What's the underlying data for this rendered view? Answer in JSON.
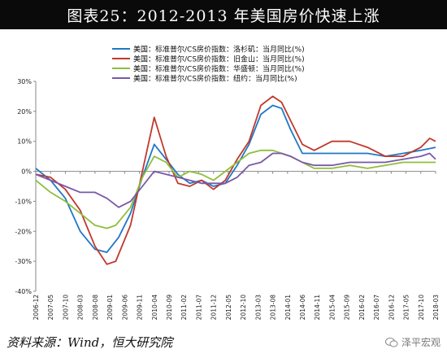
{
  "title": "图表25：2012-2013 年美国房价快速上涨",
  "source": "资料来源：Wind，恒大研究院",
  "watermark": "泽平宏观",
  "chart_data": {
    "type": "line",
    "legend_position": "top-center",
    "grid": false,
    "ylim": [
      -40,
      30
    ],
    "ytick_labels": [
      "30%",
      "20%",
      "10%",
      "0%",
      "-10%",
      "-20%",
      "-30%",
      "-40%"
    ],
    "yticks": [
      30,
      20,
      10,
      0,
      -10,
      -20,
      -30,
      -40
    ],
    "xlim": [
      "2006-12",
      "2018-03"
    ],
    "xtick_labels": [
      "2006-12",
      "2007-05",
      "2007-10",
      "2008-03",
      "2008-08",
      "2009-01",
      "2009-06",
      "2009-11",
      "2010-04",
      "2010-09",
      "2011-02",
      "2011-07",
      "2011-12",
      "2012-05",
      "2012-10",
      "2013-03",
      "2013-08",
      "2014-01",
      "2014-06",
      "2014-11",
      "2015-04",
      "2015-09",
      "2016-02",
      "2016-07",
      "2016-12",
      "2017-05",
      "2017-10",
      "2018-03"
    ],
    "series": [
      {
        "name": "美国：标准普尔/CS房价指数：洛杉矶：当月同比(%)",
        "color": "#1f78c8",
        "points": [
          [
            "2006-12",
            1
          ],
          [
            "2007-05",
            -3
          ],
          [
            "2007-10",
            -9
          ],
          [
            "2008-03",
            -20
          ],
          [
            "2008-08",
            -26
          ],
          [
            "2008-12",
            -27
          ],
          [
            "2009-04",
            -22
          ],
          [
            "2009-08",
            -14
          ],
          [
            "2009-12",
            -2
          ],
          [
            "2010-04",
            9
          ],
          [
            "2010-08",
            4
          ],
          [
            "2010-12",
            -1
          ],
          [
            "2011-04",
            -4
          ],
          [
            "2011-08",
            -3
          ],
          [
            "2011-12",
            -5
          ],
          [
            "2012-04",
            -4
          ],
          [
            "2012-08",
            2
          ],
          [
            "2012-12",
            9
          ],
          [
            "2013-04",
            19
          ],
          [
            "2013-08",
            22
          ],
          [
            "2013-11",
            21
          ],
          [
            "2014-02",
            14
          ],
          [
            "2014-06",
            6
          ],
          [
            "2014-10",
            6
          ],
          [
            "2015-04",
            6
          ],
          [
            "2015-10",
            6
          ],
          [
            "2016-04",
            6
          ],
          [
            "2016-10",
            5
          ],
          [
            "2017-04",
            6
          ],
          [
            "2017-10",
            7
          ],
          [
            "2018-03",
            8
          ]
        ]
      },
      {
        "name": "美国：标准普尔/CS房价指数：旧金山：当月同比(%)",
        "color": "#c0392b",
        "points": [
          [
            "2006-12",
            -1
          ],
          [
            "2007-05",
            -2
          ],
          [
            "2007-10",
            -6
          ],
          [
            "2008-03",
            -13
          ],
          [
            "2008-08",
            -25
          ],
          [
            "2008-12",
            -31
          ],
          [
            "2009-03",
            -30
          ],
          [
            "2009-08",
            -18
          ],
          [
            "2009-12",
            0
          ],
          [
            "2010-04",
            18
          ],
          [
            "2010-08",
            5
          ],
          [
            "2010-12",
            -4
          ],
          [
            "2011-04",
            -5
          ],
          [
            "2011-08",
            -3
          ],
          [
            "2011-12",
            -6
          ],
          [
            "2012-04",
            -3
          ],
          [
            "2012-08",
            4
          ],
          [
            "2012-12",
            10
          ],
          [
            "2013-04",
            22
          ],
          [
            "2013-08",
            25
          ],
          [
            "2013-11",
            23
          ],
          [
            "2014-02",
            17
          ],
          [
            "2014-06",
            9
          ],
          [
            "2014-10",
            7
          ],
          [
            "2015-04",
            10
          ],
          [
            "2015-10",
            10
          ],
          [
            "2016-04",
            8
          ],
          [
            "2016-10",
            5
          ],
          [
            "2017-04",
            5
          ],
          [
            "2017-10",
            8
          ],
          [
            "2018-01",
            11
          ],
          [
            "2018-03",
            10
          ]
        ]
      },
      {
        "name": "美国：标准普尔/CS房价指数：华盛顿：当月同比(%)",
        "color": "#8dbf3c",
        "points": [
          [
            "2006-12",
            -3
          ],
          [
            "2007-05",
            -7
          ],
          [
            "2007-10",
            -10
          ],
          [
            "2008-03",
            -14
          ],
          [
            "2008-08",
            -18
          ],
          [
            "2008-12",
            -19
          ],
          [
            "2009-03",
            -18
          ],
          [
            "2009-08",
            -12
          ],
          [
            "2009-12",
            -2
          ],
          [
            "2010-04",
            5
          ],
          [
            "2010-08",
            3
          ],
          [
            "2010-12",
            -2
          ],
          [
            "2011-04",
            0
          ],
          [
            "2011-08",
            -1
          ],
          [
            "2011-12",
            -3
          ],
          [
            "2012-04",
            0
          ],
          [
            "2012-08",
            3
          ],
          [
            "2012-12",
            6
          ],
          [
            "2013-04",
            7
          ],
          [
            "2013-08",
            7
          ],
          [
            "2014-02",
            5
          ],
          [
            "2014-06",
            3
          ],
          [
            "2014-10",
            1
          ],
          [
            "2015-04",
            1
          ],
          [
            "2015-10",
            2
          ],
          [
            "2016-04",
            1
          ],
          [
            "2016-10",
            2
          ],
          [
            "2017-04",
            3
          ],
          [
            "2017-10",
            3
          ],
          [
            "2018-03",
            3
          ]
        ]
      },
      {
        "name": "美国：标准普尔/CS房价指数：纽约：当月同比(%)",
        "color": "#7a58a6",
        "points": [
          [
            "2006-12",
            -1
          ],
          [
            "2007-05",
            -3
          ],
          [
            "2007-10",
            -5
          ],
          [
            "2008-03",
            -7
          ],
          [
            "2008-08",
            -7
          ],
          [
            "2008-12",
            -9
          ],
          [
            "2009-04",
            -12
          ],
          [
            "2009-08",
            -10
          ],
          [
            "2009-12",
            -5
          ],
          [
            "2010-04",
            0
          ],
          [
            "2010-08",
            -1
          ],
          [
            "2010-12",
            -2
          ],
          [
            "2011-04",
            -3
          ],
          [
            "2011-08",
            -4
          ],
          [
            "2011-12",
            -4
          ],
          [
            "2012-04",
            -4
          ],
          [
            "2012-08",
            -2
          ],
          [
            "2012-12",
            2
          ],
          [
            "2013-04",
            3
          ],
          [
            "2013-08",
            6
          ],
          [
            "2013-11",
            6
          ],
          [
            "2014-02",
            5
          ],
          [
            "2014-06",
            3
          ],
          [
            "2014-10",
            2
          ],
          [
            "2015-04",
            2
          ],
          [
            "2015-10",
            3
          ],
          [
            "2016-04",
            3
          ],
          [
            "2016-10",
            3
          ],
          [
            "2017-04",
            4
          ],
          [
            "2017-10",
            5
          ],
          [
            "2018-01",
            6
          ],
          [
            "2018-03",
            4
          ]
        ]
      }
    ]
  }
}
